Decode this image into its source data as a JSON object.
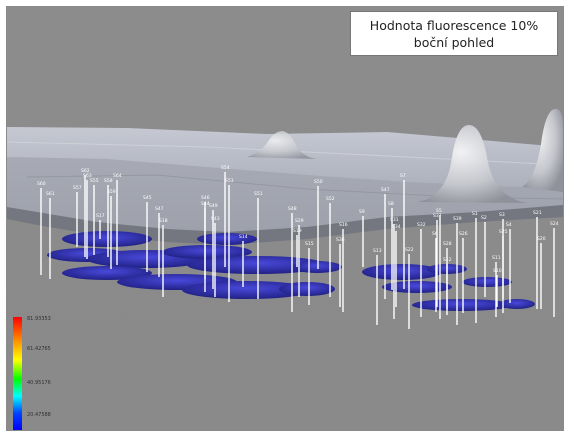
{
  "title": "Hodnota fluorescence 10% boční pohled",
  "legend": {
    "labels": [
      "81.93353",
      "61.42765",
      "40.95176",
      "20.47588"
    ],
    "colors": [
      "#ff0000",
      "#ff8800",
      "#ffff00",
      "#00ff00",
      "#00ffff",
      "#0044ff",
      "#0000ff"
    ]
  },
  "colors": {
    "background": "#8e8e8e",
    "terrain": "#b8bcc6",
    "blob": "#2a2aa8",
    "well": "#ffffff"
  },
  "wells": [
    {
      "label": "S60"
    },
    {
      "label": "S61"
    },
    {
      "label": "S62"
    },
    {
      "label": "S63"
    },
    {
      "label": "S64"
    },
    {
      "label": "S55"
    },
    {
      "label": "S57"
    },
    {
      "label": "S58"
    },
    {
      "label": "S59"
    },
    {
      "label": "S17"
    },
    {
      "label": "S45"
    },
    {
      "label": "S47"
    },
    {
      "label": "S46"
    },
    {
      "label": "S49"
    },
    {
      "label": "S44"
    },
    {
      "label": "S43"
    },
    {
      "label": "S53"
    },
    {
      "label": "S54"
    },
    {
      "label": "S51"
    },
    {
      "label": "S48"
    },
    {
      "label": "S50"
    },
    {
      "label": "S52"
    },
    {
      "label": "S47"
    },
    {
      "label": "S14"
    },
    {
      "label": "S16"
    },
    {
      "label": "S36"
    },
    {
      "label": "S9"
    },
    {
      "label": "S8"
    },
    {
      "label": "S31"
    },
    {
      "label": "S34"
    },
    {
      "label": "S32"
    },
    {
      "label": "S5"
    },
    {
      "label": "S6"
    },
    {
      "label": "S39"
    },
    {
      "label": "S1"
    },
    {
      "label": "S2"
    },
    {
      "label": "S3"
    },
    {
      "label": "S4"
    },
    {
      "label": "S21"
    },
    {
      "label": "S24"
    },
    {
      "label": "S25"
    },
    {
      "label": "S20"
    },
    {
      "label": "S26"
    },
    {
      "label": "S28"
    },
    {
      "label": "S29"
    },
    {
      "label": "S15"
    },
    {
      "label": "S13"
    },
    {
      "label": "S12"
    },
    {
      "label": "S22"
    },
    {
      "label": "S11"
    },
    {
      "label": "S10"
    },
    {
      "label": "S18"
    },
    {
      "label": "S19"
    },
    {
      "label": "S7"
    },
    {
      "label": "S37"
    }
  ]
}
